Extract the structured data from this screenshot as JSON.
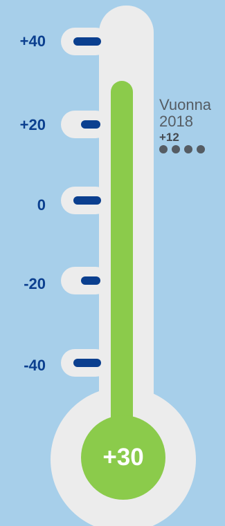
{
  "scale": {
    "labels": [
      "+40",
      "+20",
      "0",
      "-20",
      "-40"
    ],
    "values": [
      40,
      20,
      0,
      -20,
      -40
    ]
  },
  "thermometer": {
    "current_label": "+30",
    "current_value": 30,
    "fill_color": "#8bcb4b",
    "tube_color": "#ececec",
    "tick_color": "#0b3f8f",
    "scale_min": -40,
    "scale_max": 40
  },
  "annotation": {
    "title": "Vuonna",
    "year": "2018",
    "value": "+12",
    "dot_count": 4
  }
}
